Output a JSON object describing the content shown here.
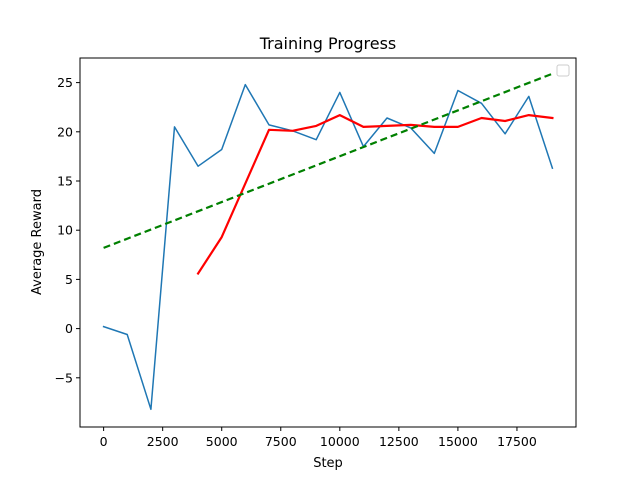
{
  "chart_data": {
    "type": "line",
    "title": "Training Progress",
    "xlabel": "Step",
    "ylabel": "Average Reward",
    "xlim": [
      -1000,
      20000
    ],
    "ylim": [
      -10,
      27.5
    ],
    "xticks": [
      0,
      2500,
      5000,
      7500,
      10000,
      12500,
      15000,
      17500
    ],
    "xtick_labels": [
      "0",
      "2500",
      "5000",
      "7500",
      "10000",
      "12500",
      "15000",
      "17500"
    ],
    "yticks": [
      -5,
      0,
      5,
      10,
      15,
      20,
      25
    ],
    "ytick_labels": [
      "−5",
      "0",
      "5",
      "10",
      "15",
      "20",
      "25"
    ],
    "grid": false,
    "legend": "top-right (empty)",
    "series": [
      {
        "color": "#1f77b4",
        "style": "solid",
        "x": [
          0,
          1000,
          2000,
          3000,
          4000,
          5000,
          6000,
          7000,
          8000,
          9000,
          10000,
          11000,
          12000,
          13000,
          14000,
          15000,
          16000,
          17000,
          18000,
          19000
        ],
        "values": [
          0.2,
          -0.6,
          -8.2,
          20.5,
          16.5,
          18.2,
          24.8,
          20.7,
          20.1,
          19.2,
          24.0,
          18.5,
          21.4,
          20.4,
          17.8,
          24.2,
          22.9,
          19.8,
          23.6,
          16.3
        ]
      },
      {
        "color": "#ff0000",
        "style": "solid",
        "x": [
          4000,
          5000,
          7000,
          8000,
          9000,
          10000,
          11000,
          12000,
          13000,
          14000,
          15000,
          16000,
          17000,
          18000,
          19000
        ],
        "values": [
          5.6,
          9.3,
          20.2,
          20.1,
          20.6,
          21.7,
          20.5,
          20.6,
          20.7,
          20.5,
          20.5,
          21.4,
          21.1,
          21.7,
          21.4
        ]
      },
      {
        "color": "#008000",
        "style": "dashed",
        "x": [
          0,
          19000
        ],
        "values": [
          8.2,
          25.9
        ]
      }
    ]
  }
}
